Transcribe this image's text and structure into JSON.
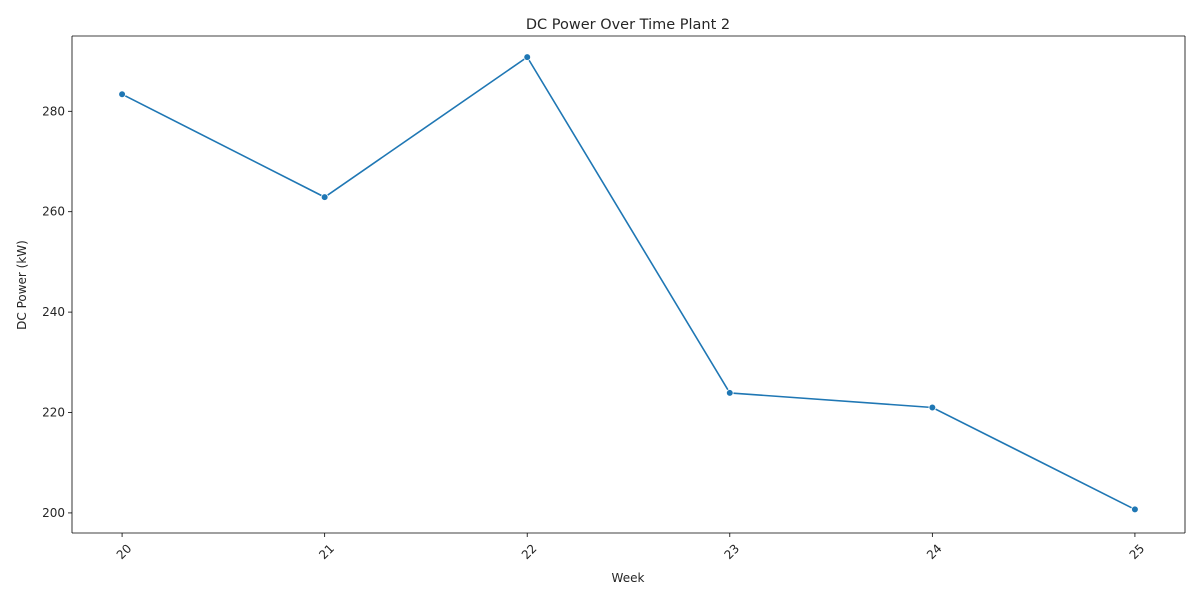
{
  "chart_data": {
    "type": "line",
    "title": "DC Power Over Time Plant 2",
    "xlabel": "Week",
    "ylabel": "DC Power (kW)",
    "x": [
      "20",
      "21",
      "22",
      "23",
      "24",
      "25"
    ],
    "series": [
      {
        "values": [
          283.4,
          262.9,
          290.8,
          223.9,
          221.0,
          200.7
        ]
      }
    ],
    "yticks": [
      200,
      220,
      240,
      260,
      280
    ],
    "ylim": [
      196,
      295
    ],
    "xtick_rotation": 45,
    "grid": false,
    "legend": "none",
    "line_color": "#1f77b4"
  }
}
